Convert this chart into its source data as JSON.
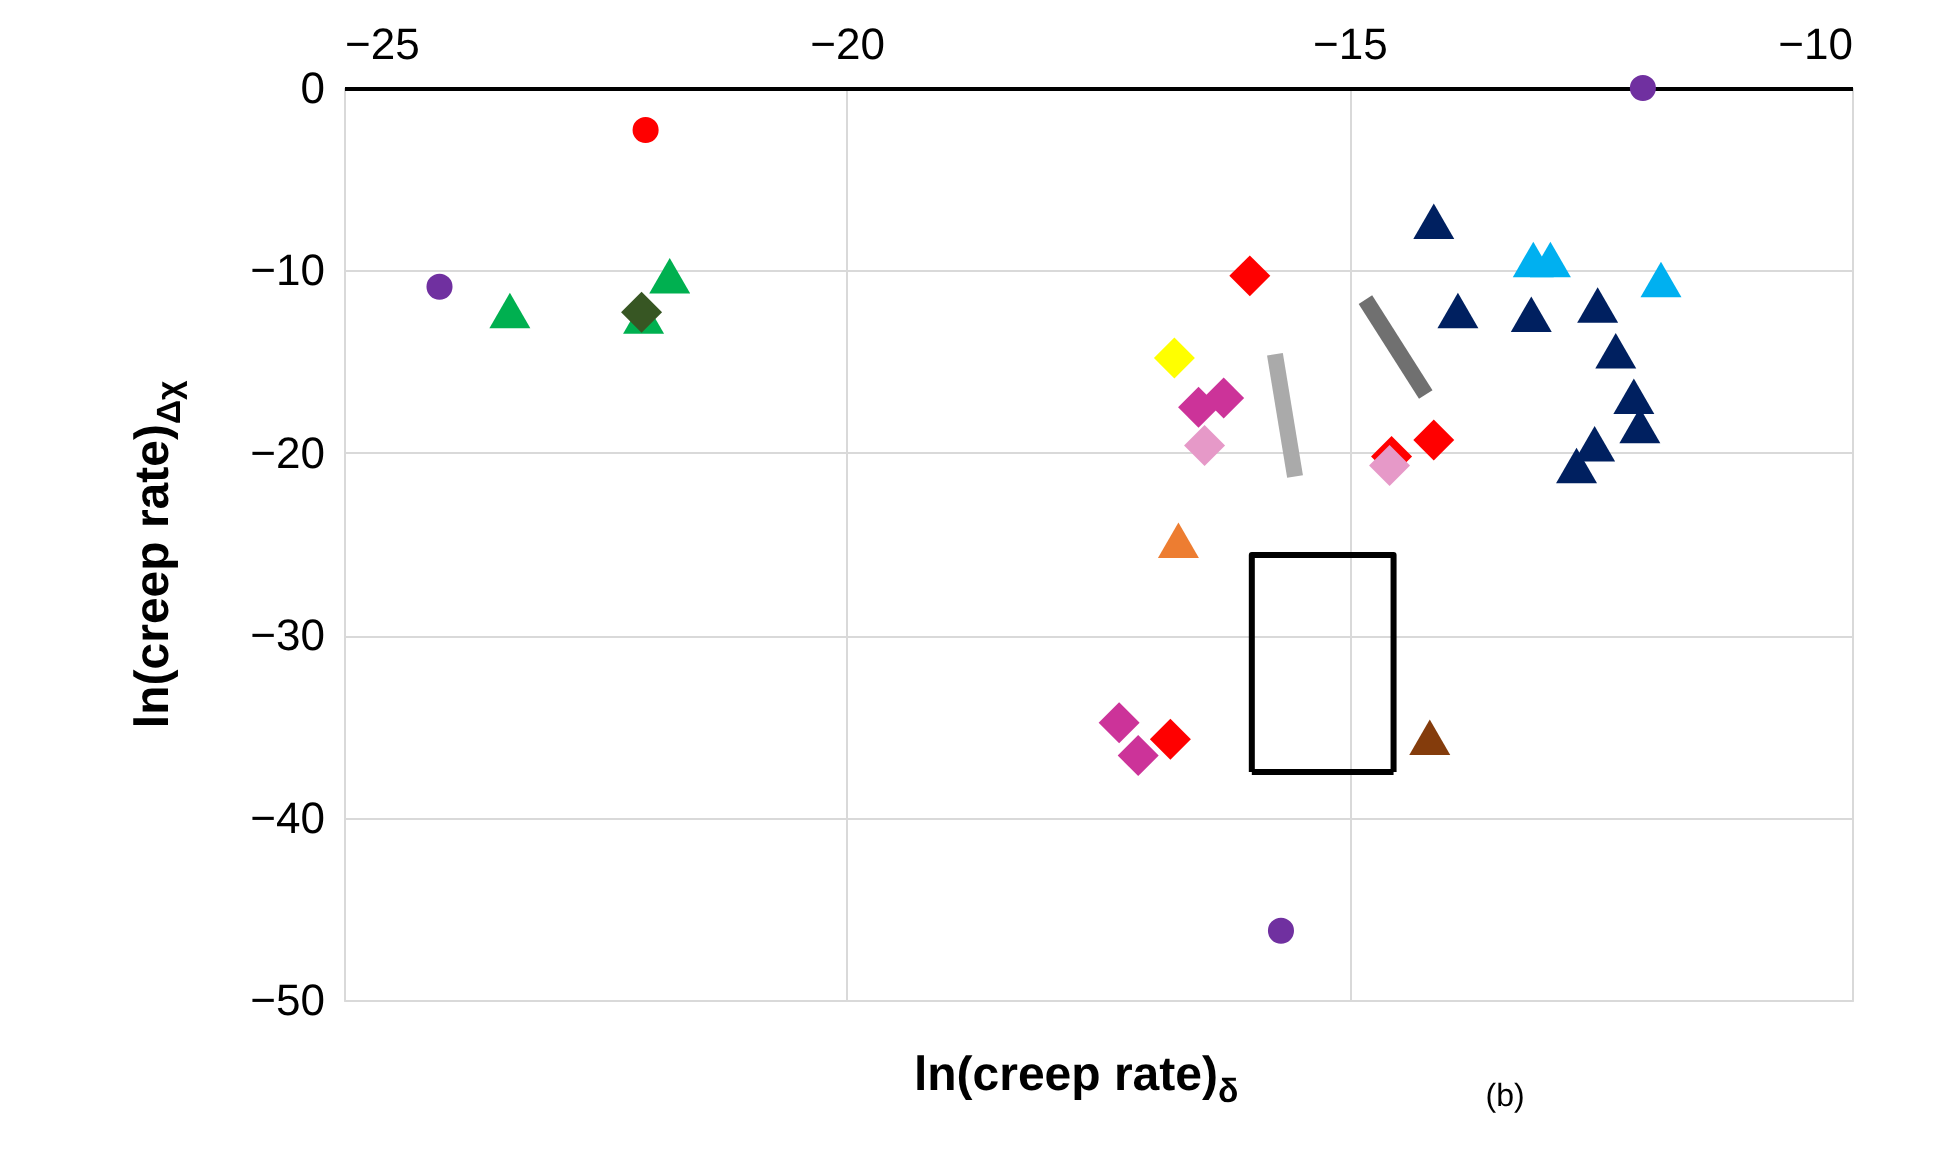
{
  "chart_data": {
    "type": "scatter",
    "xlabel": "ln(creep rate)$_{δ}$",
    "ylabel": "ln(creep rate)$_{Δχ}$",
    "annotations": [
      "(b)"
    ],
    "xlim": [
      -25,
      -10
    ],
    "xticks": [
      -25,
      -20,
      -15,
      -10
    ],
    "ylim": [
      -50,
      0
    ],
    "yticks": [
      0,
      -10,
      -20,
      -30,
      -40,
      -50
    ],
    "grid": true,
    "series": [
      {
        "type": "scatter",
        "marker": "circle",
        "color": "#7030a0",
        "x": [
          -24.05,
          -12.08,
          -15.68
        ],
        "values": [
          -10.9,
          0,
          -46.2
        ]
      },
      {
        "type": "scatter",
        "marker": "circle",
        "color": "#ff0000",
        "x": [
          -22.0
        ],
        "values": [
          -2.3
        ]
      },
      {
        "type": "scatter",
        "marker": "triangle",
        "color": "#00b050",
        "x": [
          -23.35,
          -22.02,
          -21.76
        ],
        "values": [
          -12.2,
          -12.5,
          -10.3
        ]
      },
      {
        "type": "scatter",
        "marker": "diamond",
        "color": "#375623",
        "x": [
          -22.04
        ],
        "values": [
          -12.3
        ]
      },
      {
        "type": "scatter",
        "marker": "diamond",
        "color": "#ff0000",
        "x": [
          -15.99,
          -16.78,
          -14.58,
          -14.16
        ],
        "values": [
          -10.3,
          -35.7,
          -20.2,
          -19.3
        ]
      },
      {
        "type": "scatter",
        "marker": "diamond",
        "color": "#ffff00",
        "x": [
          -16.74
        ],
        "values": [
          -14.8
        ]
      },
      {
        "type": "scatter",
        "marker": "diamond",
        "color": "#cc3399",
        "x": [
          -16.5,
          -16.25,
          -17.29,
          -17.1
        ],
        "values": [
          -17.5,
          -17.0,
          -34.8,
          -36.6
        ]
      },
      {
        "type": "scatter",
        "marker": "diamond",
        "color": "#e699c8",
        "x": [
          -16.44,
          -14.6
        ],
        "values": [
          -19.6,
          -20.7
        ]
      },
      {
        "type": "scatter",
        "marker": "triangle",
        "color": "#ed7d31",
        "x": [
          -16.7
        ],
        "values": [
          -24.8
        ]
      },
      {
        "type": "scatter",
        "marker": "triangle",
        "color": "#843c0c",
        "x": [
          -14.2
        ],
        "values": [
          -35.6
        ]
      },
      {
        "type": "scatter",
        "marker": "triangle",
        "color": "#002060",
        "x": [
          -14.16,
          -13.92,
          -13.19,
          -12.53,
          -12.35,
          -12.17,
          -12.11,
          -12.56,
          -12.74
        ],
        "values": [
          -7.3,
          -12.2,
          -12.4,
          -11.9,
          -14.4,
          -16.9,
          -18.5,
          -19.5,
          -20.7
        ]
      },
      {
        "type": "scatter",
        "marker": "triangle",
        "color": "#00b0f0",
        "x": [
          -13.17,
          -13.0,
          -11.9
        ],
        "values": [
          -9.4,
          -9.4,
          -10.5
        ]
      },
      {
        "type": "line",
        "line_style": "solid",
        "color": "#aaaaaa",
        "x": [
          -15.74,
          -15.54
        ],
        "values": [
          -14.6,
          -21.3
        ]
      },
      {
        "type": "line",
        "line_style": "solid",
        "color": "#707070",
        "x": [
          -14.84,
          -14.24
        ],
        "values": [
          -11.6,
          -16.8
        ]
      },
      {
        "type": "line",
        "line_style": "solid",
        "color": "#000000",
        "x": [
          -15.97,
          -15.97,
          -14.56,
          -14.56
        ],
        "values": [
          -37.5,
          -25.6,
          -25.6,
          -37.5
        ]
      },
      {
        "type": "line",
        "line_style": "solid",
        "color": "#000000",
        "x": [
          -15.97,
          -14.56
        ],
        "values": [
          -37.5,
          -37.5
        ]
      }
    ]
  }
}
